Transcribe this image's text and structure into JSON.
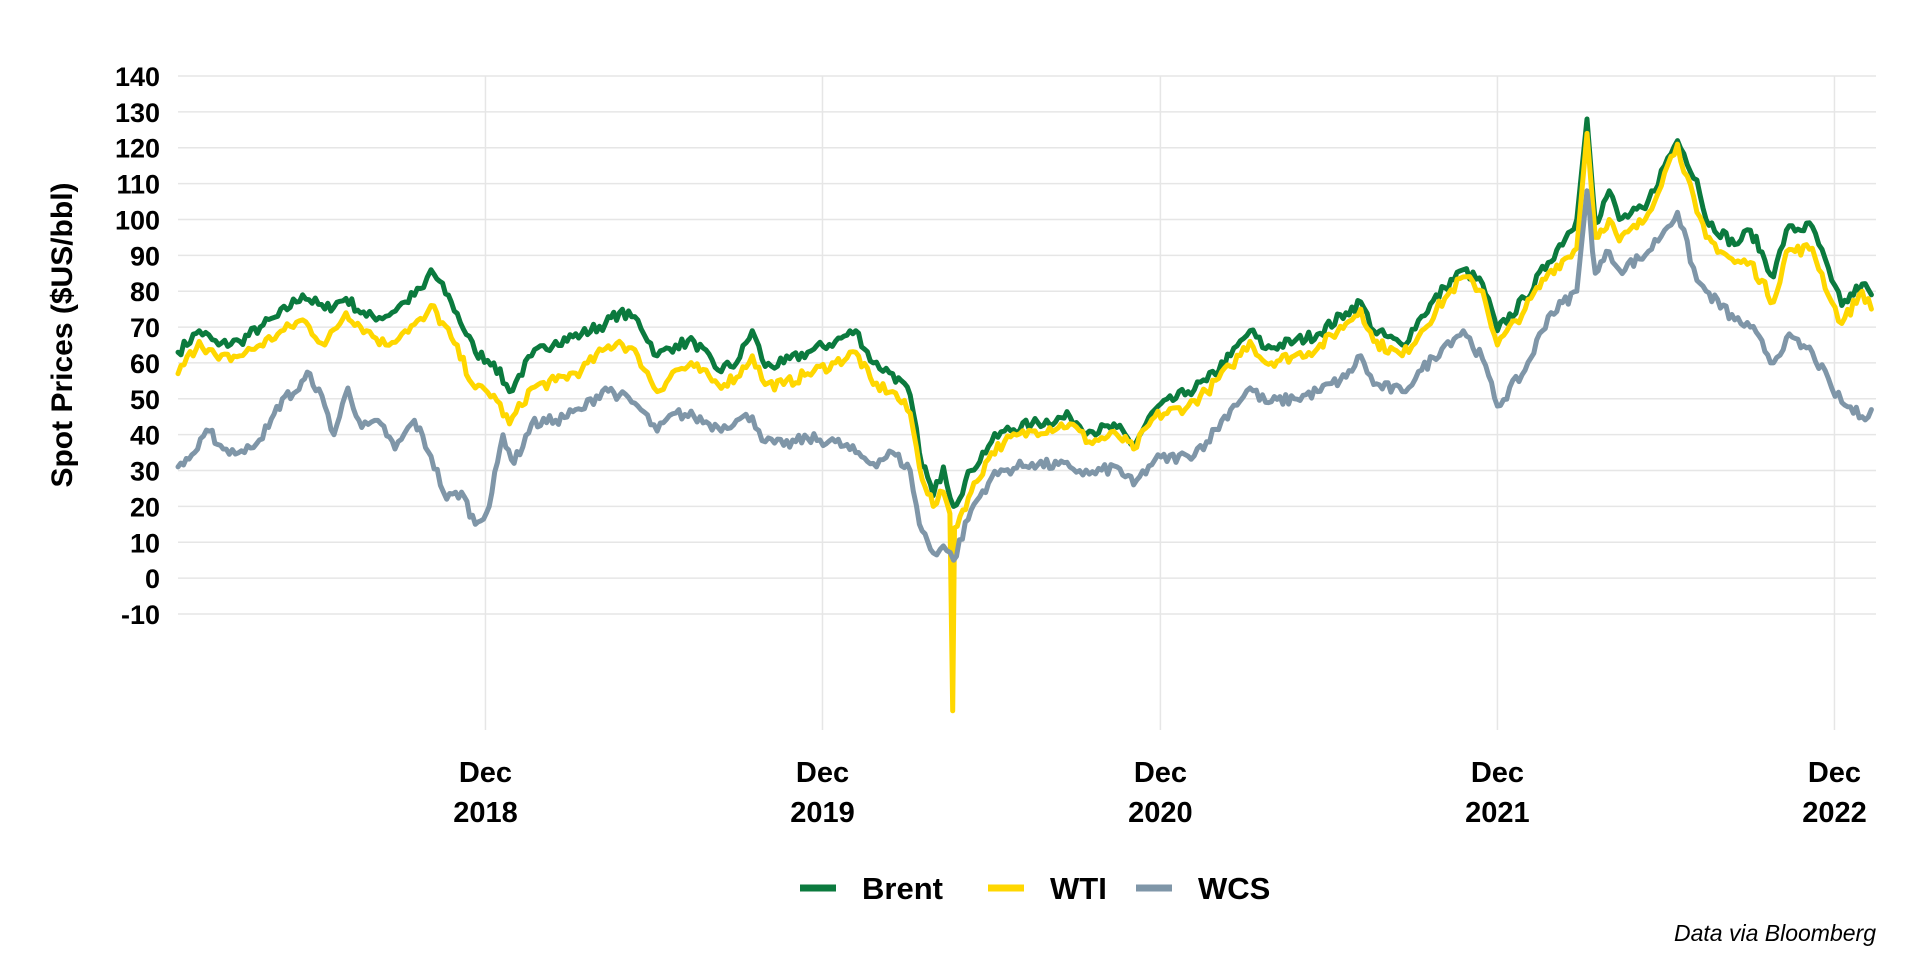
{
  "chart_data": {
    "type": "line",
    "title": "",
    "xlabel": "",
    "ylabel": "Spot Prices ($US/bbl)",
    "ylim": [
      -10,
      140
    ],
    "yticks": [
      140,
      130,
      120,
      110,
      100,
      90,
      80,
      70,
      60,
      50,
      40,
      30,
      20,
      10,
      0,
      -10
    ],
    "xlim": [
      "2018-01-02",
      "2023-01-15"
    ],
    "xticks": [
      {
        "date": "2018-12-01",
        "line1": "Dec",
        "line2": "2018"
      },
      {
        "date": "2019-12-01",
        "line1": "Dec",
        "line2": "2019"
      },
      {
        "date": "2020-12-01",
        "line1": "Dec",
        "line2": "2020"
      },
      {
        "date": "2021-12-01",
        "line1": "Dec",
        "line2": "2021"
      },
      {
        "date": "2022-12-01",
        "line1": "Dec",
        "line2": "2022"
      }
    ],
    "grid": true,
    "legend_position": "bottom",
    "caption": "Data via Bloomberg",
    "series": [
      {
        "name": "Brent",
        "color": "#0b7a3e",
        "points": [
          [
            "2018-01-02",
            63
          ],
          [
            "2018-01-25",
            69
          ],
          [
            "2018-02-15",
            65
          ],
          [
            "2018-03-10",
            66
          ],
          [
            "2018-04-01",
            70
          ],
          [
            "2018-04-20",
            73
          ],
          [
            "2018-05-17",
            79
          ],
          [
            "2018-06-10",
            75
          ],
          [
            "2018-07-03",
            78
          ],
          [
            "2018-07-25",
            73
          ],
          [
            "2018-08-15",
            73
          ],
          [
            "2018-09-05",
            77
          ],
          [
            "2018-09-25",
            81
          ],
          [
            "2018-10-03",
            86
          ],
          [
            "2018-10-25",
            77
          ],
          [
            "2018-11-20",
            63
          ],
          [
            "2018-12-10",
            60
          ],
          [
            "2018-12-27",
            52
          ],
          [
            "2019-01-20",
            62
          ],
          [
            "2019-02-15",
            66
          ],
          [
            "2019-03-15",
            68
          ],
          [
            "2019-04-10",
            71
          ],
          [
            "2019-04-25",
            74
          ],
          [
            "2019-05-15",
            72
          ],
          [
            "2019-06-05",
            62
          ],
          [
            "2019-06-25",
            65
          ],
          [
            "2019-07-15",
            66
          ],
          [
            "2019-08-10",
            58
          ],
          [
            "2019-08-30",
            60
          ],
          [
            "2019-09-16",
            69
          ],
          [
            "2019-09-30",
            59
          ],
          [
            "2019-10-20",
            60
          ],
          [
            "2019-11-15",
            63
          ],
          [
            "2019-12-15",
            66
          ],
          [
            "2020-01-06",
            69
          ],
          [
            "2020-01-25",
            60
          ],
          [
            "2020-02-15",
            57
          ],
          [
            "2020-03-05",
            51
          ],
          [
            "2020-03-15",
            35
          ],
          [
            "2020-03-30",
            23
          ],
          [
            "2020-04-10",
            31
          ],
          [
            "2020-04-21",
            20
          ],
          [
            "2020-05-10",
            30
          ],
          [
            "2020-06-01",
            38
          ],
          [
            "2020-06-15",
            41
          ],
          [
            "2020-07-15",
            43
          ],
          [
            "2020-08-25",
            45
          ],
          [
            "2020-09-15",
            41
          ],
          [
            "2020-10-15",
            42
          ],
          [
            "2020-11-02",
            37
          ],
          [
            "2020-11-25",
            47
          ],
          [
            "2020-12-31",
            52
          ],
          [
            "2021-01-20",
            55
          ],
          [
            "2021-02-15",
            62
          ],
          [
            "2021-03-08",
            69
          ],
          [
            "2021-03-25",
            64
          ],
          [
            "2021-04-25",
            66
          ],
          [
            "2021-05-20",
            68
          ],
          [
            "2021-06-20",
            74
          ],
          [
            "2021-07-06",
            77
          ],
          [
            "2021-07-20",
            69
          ],
          [
            "2021-08-20",
            65
          ],
          [
            "2021-09-10",
            73
          ],
          [
            "2021-10-05",
            81
          ],
          [
            "2021-10-25",
            86
          ],
          [
            "2021-11-15",
            82
          ],
          [
            "2021-12-01",
            69
          ],
          [
            "2021-12-31",
            78
          ],
          [
            "2022-01-25",
            88
          ],
          [
            "2022-02-25",
            100
          ],
          [
            "2022-03-08",
            128
          ],
          [
            "2022-03-17",
            99
          ],
          [
            "2022-04-01",
            108
          ],
          [
            "2022-04-12",
            100
          ],
          [
            "2022-05-10",
            103
          ],
          [
            "2022-05-31",
            115
          ],
          [
            "2022-06-14",
            122
          ],
          [
            "2022-07-05",
            111
          ],
          [
            "2022-07-15",
            100
          ],
          [
            "2022-08-15",
            93
          ],
          [
            "2022-09-01",
            97
          ],
          [
            "2022-09-26",
            84
          ],
          [
            "2022-10-10",
            97
          ],
          [
            "2022-11-07",
            98
          ],
          [
            "2022-11-28",
            83
          ],
          [
            "2022-12-09",
            76
          ],
          [
            "2022-12-31",
            82
          ],
          [
            "2023-01-10",
            79
          ]
        ]
      },
      {
        "name": "WTI",
        "color": "#ffd700",
        "points": [
          [
            "2018-01-02",
            57
          ],
          [
            "2018-01-25",
            66
          ],
          [
            "2018-02-15",
            61
          ],
          [
            "2018-03-10",
            62
          ],
          [
            "2018-04-01",
            65
          ],
          [
            "2018-04-20",
            68
          ],
          [
            "2018-05-17",
            72
          ],
          [
            "2018-06-10",
            65
          ],
          [
            "2018-07-03",
            74
          ],
          [
            "2018-07-25",
            69
          ],
          [
            "2018-08-15",
            65
          ],
          [
            "2018-09-05",
            69
          ],
          [
            "2018-09-25",
            72
          ],
          [
            "2018-10-03",
            76
          ],
          [
            "2018-10-25",
            67
          ],
          [
            "2018-11-20",
            53
          ],
          [
            "2018-12-10",
            51
          ],
          [
            "2018-12-27",
            43
          ],
          [
            "2019-01-20",
            53
          ],
          [
            "2019-02-15",
            55
          ],
          [
            "2019-03-15",
            58
          ],
          [
            "2019-04-10",
            64
          ],
          [
            "2019-04-25",
            66
          ],
          [
            "2019-05-15",
            62
          ],
          [
            "2019-06-05",
            52
          ],
          [
            "2019-06-25",
            58
          ],
          [
            "2019-07-15",
            59
          ],
          [
            "2019-08-10",
            54
          ],
          [
            "2019-08-30",
            56
          ],
          [
            "2019-09-16",
            62
          ],
          [
            "2019-09-30",
            54
          ],
          [
            "2019-10-20",
            54
          ],
          [
            "2019-11-15",
            57
          ],
          [
            "2019-12-15",
            60
          ],
          [
            "2020-01-06",
            63
          ],
          [
            "2020-01-25",
            54
          ],
          [
            "2020-02-15",
            52
          ],
          [
            "2020-03-05",
            46
          ],
          [
            "2020-03-15",
            31
          ],
          [
            "2020-03-30",
            20
          ],
          [
            "2020-04-10",
            24
          ],
          [
            "2020-04-17",
            18
          ],
          [
            "2020-04-20",
            -37
          ],
          [
            "2020-04-22",
            14
          ],
          [
            "2020-05-10",
            24
          ],
          [
            "2020-06-01",
            35
          ],
          [
            "2020-06-15",
            38
          ],
          [
            "2020-07-15",
            41
          ],
          [
            "2020-08-25",
            43
          ],
          [
            "2020-09-15",
            38
          ],
          [
            "2020-10-15",
            40
          ],
          [
            "2020-11-02",
            36
          ],
          [
            "2020-11-25",
            45
          ],
          [
            "2020-12-31",
            48
          ],
          [
            "2021-01-20",
            52
          ],
          [
            "2021-02-15",
            59
          ],
          [
            "2021-03-08",
            66
          ],
          [
            "2021-03-25",
            60
          ],
          [
            "2021-04-25",
            62
          ],
          [
            "2021-05-20",
            64
          ],
          [
            "2021-06-20",
            71
          ],
          [
            "2021-07-06",
            75
          ],
          [
            "2021-07-20",
            66
          ],
          [
            "2021-08-20",
            62
          ],
          [
            "2021-09-10",
            69
          ],
          [
            "2021-10-05",
            78
          ],
          [
            "2021-10-25",
            84
          ],
          [
            "2021-11-15",
            80
          ],
          [
            "2021-12-01",
            65
          ],
          [
            "2021-12-31",
            75
          ],
          [
            "2022-01-25",
            85
          ],
          [
            "2022-02-25",
            92
          ],
          [
            "2022-03-08",
            124
          ],
          [
            "2022-03-17",
            95
          ],
          [
            "2022-04-01",
            100
          ],
          [
            "2022-04-12",
            94
          ],
          [
            "2022-05-10",
            100
          ],
          [
            "2022-05-31",
            113
          ],
          [
            "2022-06-14",
            121
          ],
          [
            "2022-07-05",
            102
          ],
          [
            "2022-07-15",
            95
          ],
          [
            "2022-08-15",
            88
          ],
          [
            "2022-09-01",
            88
          ],
          [
            "2022-09-26",
            77
          ],
          [
            "2022-10-10",
            91
          ],
          [
            "2022-11-07",
            92
          ],
          [
            "2022-11-28",
            77
          ],
          [
            "2022-12-09",
            71
          ],
          [
            "2022-12-31",
            80
          ],
          [
            "2023-01-10",
            75
          ]
        ]
      },
      {
        "name": "WCS",
        "color": "#7f96a8",
        "points": [
          [
            "2018-01-02",
            31
          ],
          [
            "2018-01-20",
            35
          ],
          [
            "2018-02-05",
            41
          ],
          [
            "2018-02-20",
            36
          ],
          [
            "2018-03-15",
            35
          ],
          [
            "2018-04-10",
            42
          ],
          [
            "2018-04-25",
            50
          ],
          [
            "2018-05-10",
            52
          ],
          [
            "2018-05-25",
            57
          ],
          [
            "2018-06-10",
            48
          ],
          [
            "2018-06-20",
            40
          ],
          [
            "2018-07-05",
            53
          ],
          [
            "2018-07-20",
            42
          ],
          [
            "2018-08-10",
            43
          ],
          [
            "2018-08-25",
            36
          ],
          [
            "2018-09-15",
            44
          ],
          [
            "2018-10-03",
            34
          ],
          [
            "2018-10-20",
            22
          ],
          [
            "2018-11-05",
            24
          ],
          [
            "2018-11-20",
            15
          ],
          [
            "2018-12-05",
            20
          ],
          [
            "2018-12-20",
            40
          ],
          [
            "2019-01-01",
            32
          ],
          [
            "2019-01-20",
            43
          ],
          [
            "2019-02-15",
            44
          ],
          [
            "2019-03-15",
            47
          ],
          [
            "2019-04-10",
            53
          ],
          [
            "2019-04-25",
            51
          ],
          [
            "2019-05-15",
            48
          ],
          [
            "2019-06-05",
            41
          ],
          [
            "2019-06-25",
            46
          ],
          [
            "2019-07-15",
            45
          ],
          [
            "2019-08-10",
            42
          ],
          [
            "2019-08-30",
            44
          ],
          [
            "2019-09-16",
            45
          ],
          [
            "2019-09-30",
            38
          ],
          [
            "2019-10-20",
            37
          ],
          [
            "2019-11-15",
            39
          ],
          [
            "2019-12-15",
            38
          ],
          [
            "2020-01-06",
            35
          ],
          [
            "2020-01-25",
            32
          ],
          [
            "2020-02-15",
            35
          ],
          [
            "2020-03-05",
            30
          ],
          [
            "2020-03-15",
            15
          ],
          [
            "2020-03-30",
            7
          ],
          [
            "2020-04-10",
            9
          ],
          [
            "2020-04-21",
            5
          ],
          [
            "2020-05-10",
            19
          ],
          [
            "2020-06-01",
            28
          ],
          [
            "2020-06-15",
            30
          ],
          [
            "2020-07-15",
            32
          ],
          [
            "2020-08-25",
            31
          ],
          [
            "2020-09-15",
            29
          ],
          [
            "2020-10-15",
            31
          ],
          [
            "2020-11-02",
            26
          ],
          [
            "2020-11-25",
            33
          ],
          [
            "2020-12-31",
            34
          ],
          [
            "2021-01-20",
            38
          ],
          [
            "2021-02-15",
            47
          ],
          [
            "2021-03-08",
            53
          ],
          [
            "2021-03-25",
            49
          ],
          [
            "2021-04-25",
            50
          ],
          [
            "2021-05-20",
            52
          ],
          [
            "2021-06-20",
            56
          ],
          [
            "2021-07-06",
            62
          ],
          [
            "2021-07-20",
            54
          ],
          [
            "2021-08-20",
            52
          ],
          [
            "2021-09-10",
            58
          ],
          [
            "2021-10-05",
            65
          ],
          [
            "2021-10-25",
            69
          ],
          [
            "2021-11-15",
            61
          ],
          [
            "2021-12-01",
            48
          ],
          [
            "2021-12-31",
            58
          ],
          [
            "2022-01-25",
            73
          ],
          [
            "2022-02-25",
            80
          ],
          [
            "2022-03-08",
            108
          ],
          [
            "2022-03-17",
            85
          ],
          [
            "2022-04-01",
            91
          ],
          [
            "2022-04-12",
            86
          ],
          [
            "2022-05-10",
            90
          ],
          [
            "2022-05-31",
            97
          ],
          [
            "2022-06-14",
            102
          ],
          [
            "2022-07-05",
            83
          ],
          [
            "2022-07-15",
            80
          ],
          [
            "2022-08-15",
            72
          ],
          [
            "2022-09-01",
            70
          ],
          [
            "2022-09-26",
            60
          ],
          [
            "2022-10-10",
            67
          ],
          [
            "2022-11-07",
            63
          ],
          [
            "2022-11-28",
            53
          ],
          [
            "2022-12-09",
            49
          ],
          [
            "2022-12-31",
            45
          ],
          [
            "2023-01-10",
            47
          ]
        ]
      }
    ]
  }
}
